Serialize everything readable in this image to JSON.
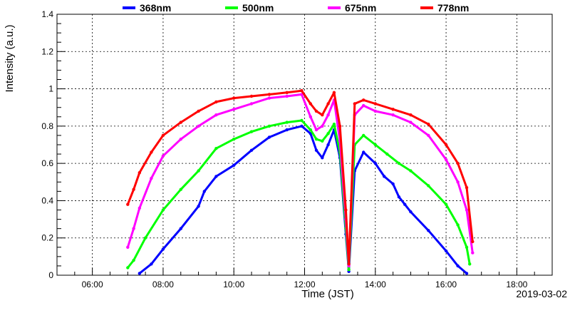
{
  "chart_data": {
    "type": "scatter",
    "title": "",
    "xlabel": "Time (JST)",
    "ylabel": "Intensity (a.u.)",
    "date_label": "2019-03-02",
    "xlim": [
      "05:00",
      "19:00"
    ],
    "ylim": [
      0,
      1.4
    ],
    "x_ticks": [
      "06:00",
      "08:00",
      "10:00",
      "12:00",
      "14:00",
      "16:00",
      "18:00"
    ],
    "y_ticks": [
      "0",
      "0.2",
      "0.4",
      "0.6",
      "0.8",
      "1",
      "1.2",
      "1.4"
    ],
    "grid": true,
    "legend_position": "top",
    "series": [
      {
        "name": "368nm",
        "color": "#0000ff",
        "points": [
          [
            "07:20",
            0.01
          ],
          [
            "07:40",
            0.06
          ],
          [
            "08:00",
            0.14
          ],
          [
            "08:30",
            0.25
          ],
          [
            "09:00",
            0.37
          ],
          [
            "09:10",
            0.45
          ],
          [
            "09:30",
            0.53
          ],
          [
            "10:00",
            0.59
          ],
          [
            "10:30",
            0.67
          ],
          [
            "11:00",
            0.74
          ],
          [
            "11:30",
            0.78
          ],
          [
            "11:55",
            0.8
          ],
          [
            "12:10",
            0.76
          ],
          [
            "12:20",
            0.67
          ],
          [
            "12:30",
            0.63
          ],
          [
            "12:40",
            0.7
          ],
          [
            "12:50",
            0.78
          ],
          [
            "13:00",
            0.63
          ],
          [
            "13:10",
            0.22
          ],
          [
            "13:15",
            0.02
          ],
          [
            "13:25",
            0.56
          ],
          [
            "13:40",
            0.66
          ],
          [
            "14:00",
            0.6
          ],
          [
            "14:15",
            0.53
          ],
          [
            "14:30",
            0.49
          ],
          [
            "14:40",
            0.42
          ],
          [
            "14:50",
            0.38
          ],
          [
            "15:00",
            0.34
          ],
          [
            "15:30",
            0.24
          ],
          [
            "16:00",
            0.13
          ],
          [
            "16:20",
            0.05
          ],
          [
            "16:35",
            0.01
          ]
        ]
      },
      {
        "name": "500nm",
        "color": "#00ff00",
        "points": [
          [
            "07:00",
            0.04
          ],
          [
            "07:10",
            0.08
          ],
          [
            "07:30",
            0.2
          ],
          [
            "08:00",
            0.35
          ],
          [
            "08:30",
            0.46
          ],
          [
            "09:00",
            0.56
          ],
          [
            "09:30",
            0.68
          ],
          [
            "10:00",
            0.73
          ],
          [
            "10:30",
            0.77
          ],
          [
            "11:00",
            0.8
          ],
          [
            "11:30",
            0.82
          ],
          [
            "11:55",
            0.83
          ],
          [
            "12:10",
            0.78
          ],
          [
            "12:20",
            0.73
          ],
          [
            "12:30",
            0.72
          ],
          [
            "12:40",
            0.76
          ],
          [
            "12:50",
            0.81
          ],
          [
            "13:00",
            0.66
          ],
          [
            "13:10",
            0.25
          ],
          [
            "13:15",
            0.03
          ],
          [
            "13:25",
            0.7
          ],
          [
            "13:40",
            0.75
          ],
          [
            "14:00",
            0.7
          ],
          [
            "14:20",
            0.65
          ],
          [
            "14:40",
            0.6
          ],
          [
            "15:00",
            0.56
          ],
          [
            "15:30",
            0.48
          ],
          [
            "16:00",
            0.38
          ],
          [
            "16:20",
            0.27
          ],
          [
            "16:35",
            0.15
          ],
          [
            "16:40",
            0.06
          ]
        ]
      },
      {
        "name": "675nm",
        "color": "#ff00ff",
        "points": [
          [
            "07:00",
            0.15
          ],
          [
            "07:10",
            0.25
          ],
          [
            "07:20",
            0.36
          ],
          [
            "07:40",
            0.52
          ],
          [
            "08:00",
            0.64
          ],
          [
            "08:30",
            0.73
          ],
          [
            "09:00",
            0.8
          ],
          [
            "09:30",
            0.86
          ],
          [
            "10:00",
            0.89
          ],
          [
            "10:30",
            0.92
          ],
          [
            "11:00",
            0.95
          ],
          [
            "11:30",
            0.96
          ],
          [
            "11:55",
            0.97
          ],
          [
            "12:10",
            0.85
          ],
          [
            "12:20",
            0.78
          ],
          [
            "12:30",
            0.8
          ],
          [
            "12:40",
            0.86
          ],
          [
            "12:50",
            0.94
          ],
          [
            "13:00",
            0.72
          ],
          [
            "13:10",
            0.3
          ],
          [
            "13:15",
            0.05
          ],
          [
            "13:25",
            0.86
          ],
          [
            "13:40",
            0.91
          ],
          [
            "14:00",
            0.88
          ],
          [
            "14:30",
            0.86
          ],
          [
            "15:00",
            0.82
          ],
          [
            "15:30",
            0.75
          ],
          [
            "16:00",
            0.62
          ],
          [
            "16:20",
            0.5
          ],
          [
            "16:35",
            0.35
          ],
          [
            "16:45",
            0.12
          ]
        ]
      },
      {
        "name": "778nm",
        "color": "#ff0000",
        "points": [
          [
            "07:00",
            0.38
          ],
          [
            "07:10",
            0.46
          ],
          [
            "07:20",
            0.55
          ],
          [
            "07:40",
            0.66
          ],
          [
            "08:00",
            0.75
          ],
          [
            "08:30",
            0.82
          ],
          [
            "09:00",
            0.88
          ],
          [
            "09:30",
            0.93
          ],
          [
            "10:00",
            0.95
          ],
          [
            "10:30",
            0.96
          ],
          [
            "11:00",
            0.97
          ],
          [
            "11:30",
            0.98
          ],
          [
            "11:55",
            0.99
          ],
          [
            "12:10",
            0.92
          ],
          [
            "12:20",
            0.88
          ],
          [
            "12:30",
            0.86
          ],
          [
            "12:40",
            0.92
          ],
          [
            "12:50",
            0.98
          ],
          [
            "13:00",
            0.8
          ],
          [
            "13:10",
            0.35
          ],
          [
            "13:15",
            0.06
          ],
          [
            "13:25",
            0.92
          ],
          [
            "13:40",
            0.94
          ],
          [
            "14:00",
            0.92
          ],
          [
            "14:30",
            0.89
          ],
          [
            "15:00",
            0.86
          ],
          [
            "15:30",
            0.81
          ],
          [
            "16:00",
            0.7
          ],
          [
            "16:20",
            0.6
          ],
          [
            "16:35",
            0.47
          ],
          [
            "16:45",
            0.18
          ]
        ]
      }
    ]
  }
}
